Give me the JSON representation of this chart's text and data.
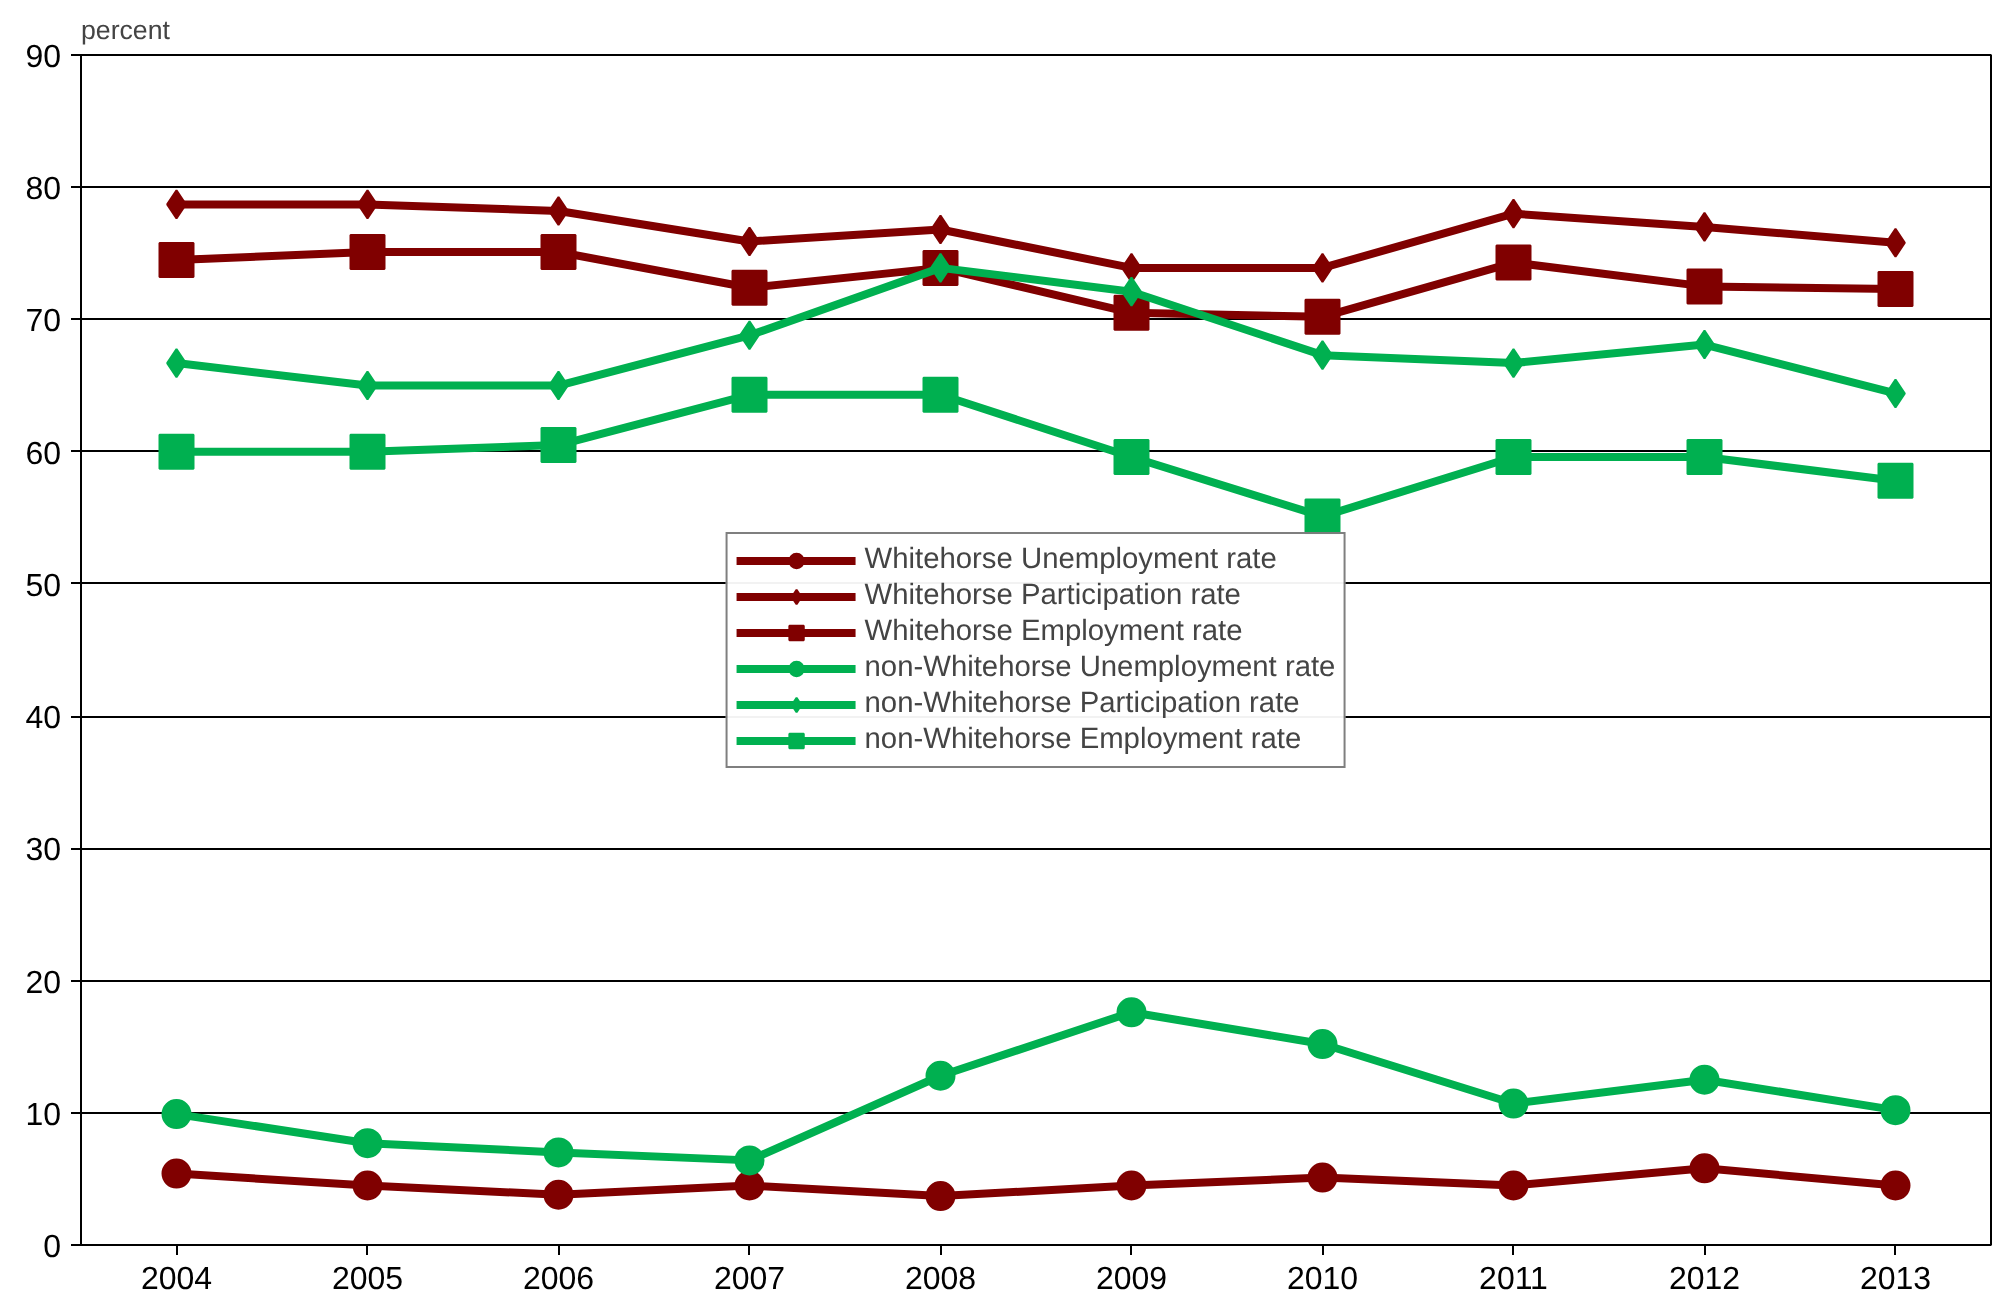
{
  "chart_data": {
    "type": "line",
    "ylabel": "percent",
    "categories": [
      "2004",
      "2005",
      "2006",
      "2007",
      "2008",
      "2009",
      "2010",
      "2011",
      "2012",
      "2013"
    ],
    "ylim": [
      0,
      90
    ],
    "yticks": [
      0,
      10,
      20,
      30,
      40,
      50,
      60,
      70,
      80,
      90
    ],
    "grid": "y",
    "legend": "center",
    "series": [
      {
        "name": "Whitehorse Unemployment rate",
        "color": "#800000",
        "marker": "circle",
        "values": [
          5.4,
          4.5,
          3.8,
          4.5,
          3.7,
          4.5,
          5.1,
          4.5,
          5.8,
          4.5
        ]
      },
      {
        "name": "Whitehorse Participation rate",
        "color": "#800000",
        "marker": "diamond",
        "values": [
          78.7,
          78.7,
          78.2,
          75.9,
          76.8,
          73.9,
          73.9,
          78.0,
          77.0,
          75.8
        ]
      },
      {
        "name": "Whitehorse Employment rate",
        "color": "#800000",
        "marker": "square",
        "values": [
          74.5,
          75.1,
          75.1,
          72.4,
          73.9,
          70.5,
          70.2,
          74.3,
          72.5,
          72.3
        ]
      },
      {
        "name": "non-Whitehorse Unemployment rate",
        "color": "#00b050",
        "marker": "circle",
        "values": [
          9.9,
          7.7,
          7.0,
          6.4,
          12.8,
          17.6,
          15.2,
          10.7,
          12.5,
          10.2
        ]
      },
      {
        "name": "non-Whitehorse Participation rate",
        "color": "#00b050",
        "marker": "diamond",
        "values": [
          66.7,
          65.0,
          65.0,
          68.8,
          73.9,
          72.1,
          67.3,
          66.7,
          68.1,
          64.4
        ]
      },
      {
        "name": "non-Whitehorse Employment rate",
        "color": "#00b050",
        "marker": "square",
        "values": [
          60.0,
          60.0,
          60.5,
          64.3,
          64.3,
          59.6,
          55.1,
          59.6,
          59.6,
          57.8
        ]
      }
    ]
  }
}
